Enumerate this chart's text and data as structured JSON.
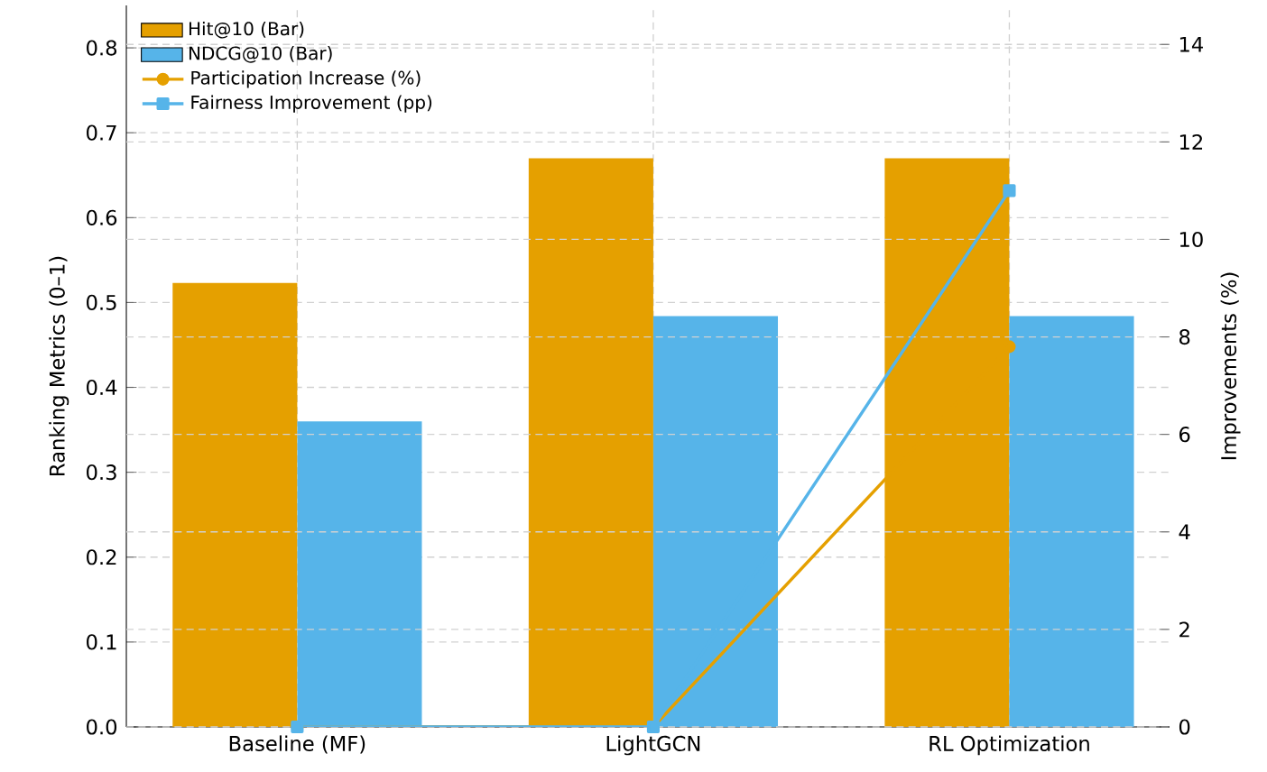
{
  "chart_data": {
    "type": "bar",
    "categories": [
      "Baseline (MF)",
      "LightGCN",
      "RL Optimization"
    ],
    "ylabel": "Ranking Metrics (0–1)",
    "y2label": "Improvements (%)",
    "ylim": [
      0,
      0.85
    ],
    "yticks": [
      {
        "value": 0,
        "label": "0.0"
      },
      0.1,
      0.2,
      0.3,
      0.4,
      0.5,
      0.6,
      0.7,
      0.8
    ],
    "y2lim": [
      0,
      14.8
    ],
    "y2ticks": [
      0,
      2,
      4,
      6,
      8,
      10,
      12,
      14
    ],
    "series": [
      {
        "name": "Hit@10 (Bar)",
        "color": "#e5a000",
        "values": [
          0.523,
          0.67,
          0.67
        ]
      },
      {
        "name": "NDCG@10 (Bar)",
        "color": "#56b4e9",
        "values": [
          0.36,
          0.484,
          0.484
        ]
      },
      {
        "name": "Participation Increase (%)",
        "type": "line",
        "axis": "y2",
        "marker": "circle",
        "color": "#e5a000",
        "values": [
          0,
          0,
          7.8
        ]
      },
      {
        "name": "Fairness Improvement (pp)",
        "type": "line",
        "axis": "y2",
        "marker": "square",
        "color": "#56b4e9",
        "values": [
          0,
          0,
          11
        ]
      }
    ],
    "grid": true,
    "legend": "top left"
  }
}
